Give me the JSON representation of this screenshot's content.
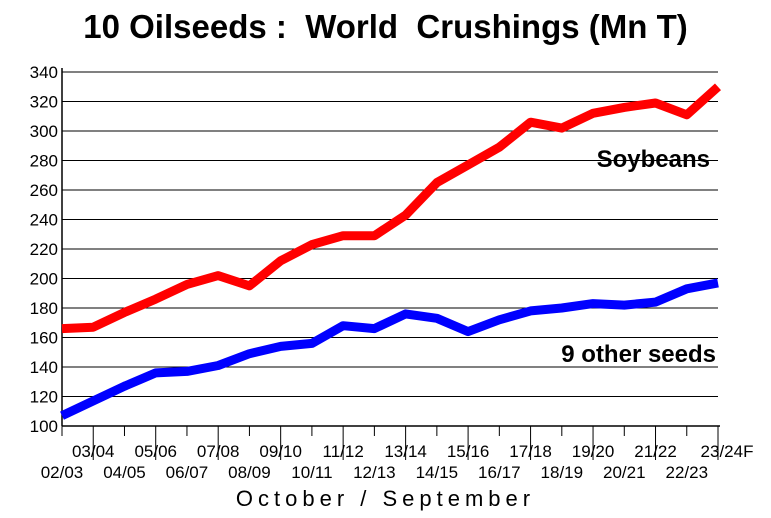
{
  "chart_data": {
    "type": "line",
    "title": "10 Oilseeds :  World  Crushings (Mn T)",
    "xlabel": "October / September",
    "ylabel": "",
    "ylim": [
      100,
      340
    ],
    "yticks": [
      100,
      120,
      140,
      160,
      180,
      200,
      220,
      240,
      260,
      280,
      300,
      320,
      340
    ],
    "grid": true,
    "categories": [
      "02/03",
      "03/04",
      "04/05",
      "05/06",
      "06/07",
      "07/08",
      "08/09",
      "09/10",
      "10/11",
      "11/12",
      "12/13",
      "13/14",
      "14/15",
      "15/16",
      "16/17",
      "17/18",
      "18/19",
      "19/20",
      "20/21",
      "21/22",
      "22/23",
      "23/24F"
    ],
    "series": [
      {
        "name": "Soybeans",
        "color": "#ff0000",
        "values": [
          166,
          167,
          177,
          186,
          196,
          202,
          195,
          212,
          223,
          229,
          229,
          243,
          265,
          277,
          289,
          306,
          302,
          312,
          316,
          319,
          311,
          330
        ]
      },
      {
        "name": "9 other seeds",
        "color": "#0000ff",
        "values": [
          107,
          117,
          127,
          136,
          137,
          141,
          149,
          154,
          156,
          168,
          166,
          176,
          173,
          164,
          172,
          178,
          180,
          183,
          182,
          184,
          193,
          197
        ]
      }
    ]
  }
}
